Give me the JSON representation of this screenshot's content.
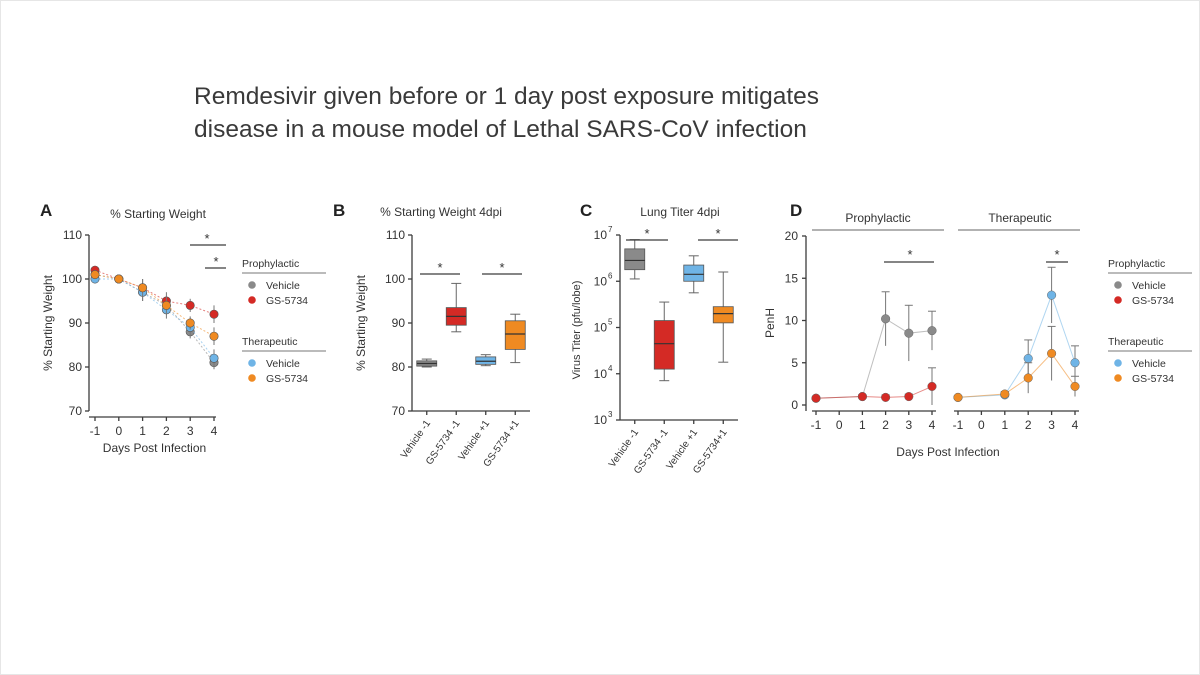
{
  "slide": {
    "title_lines": [
      "Remdesivir given before or 1 day post exposure mitigates",
      "disease in a mouse model of Lethal SARS-CoV infection"
    ]
  },
  "colors": {
    "vehicle_prophylactic": "#8a8a8a",
    "gs5734_prophylactic": "#d42a25",
    "vehicle_therapeutic": "#6fb4e6",
    "gs5734_therapeutic": "#ef8a22"
  },
  "chart_data": [
    {
      "panel": "A",
      "type": "line",
      "title": "% Starting Weight",
      "xlabel": "Days Post Infection",
      "ylabel": "% Starting Weight",
      "x": [
        -1,
        0,
        1,
        2,
        3,
        4
      ],
      "xlim": [
        -1,
        4
      ],
      "ylim": [
        70,
        110
      ],
      "yticks": [
        70,
        80,
        90,
        100,
        110
      ],
      "series": [
        {
          "name": "Vehicle",
          "group": "Prophylactic",
          "values": [
            101,
            100,
            97,
            94,
            88,
            81
          ],
          "err": [
            1,
            0.5,
            2,
            2,
            1.5,
            1.5
          ]
        },
        {
          "name": "GS-5734",
          "group": "Prophylactic",
          "values": [
            102,
            100,
            98,
            95,
            94,
            92
          ],
          "err": [
            1,
            0.5,
            2,
            2,
            1.5,
            2
          ]
        },
        {
          "name": "Vehicle",
          "group": "Therapeutic",
          "values": [
            100,
            100,
            97,
            93,
            89,
            82
          ],
          "err": [
            1,
            0.5,
            2,
            2,
            2,
            2
          ]
        },
        {
          "name": "GS-5734",
          "group": "Therapeutic",
          "values": [
            101,
            100,
            98,
            94,
            90,
            87
          ],
          "err": [
            1,
            0.5,
            2,
            2,
            1.5,
            2
          ]
        }
      ],
      "significance": [
        "*",
        "*"
      ],
      "legend": {
        "groups": [
          {
            "title": "Prophylactic",
            "items": [
              "Vehicle",
              "GS-5734"
            ]
          },
          {
            "title": "Therapeutic",
            "items": [
              "Vehicle",
              "GS-5734"
            ]
          }
        ]
      }
    },
    {
      "panel": "B",
      "type": "box",
      "title": "% Starting Weight 4dpi",
      "ylabel": "% Starting Weight",
      "categories": [
        "Vehicle -1",
        "GS-5734 -1",
        "Vehicle +1",
        "GS-5734 +1"
      ],
      "ylim": [
        70,
        110
      ],
      "yticks": [
        70,
        80,
        90,
        100,
        110
      ],
      "boxes": [
        {
          "min": 80,
          "q1": 80.2,
          "median": 80.8,
          "q3": 81.4,
          "max": 81.8
        },
        {
          "min": 88,
          "q1": 89.5,
          "median": 91.5,
          "q3": 93.5,
          "max": 99
        },
        {
          "min": 80.3,
          "q1": 80.6,
          "median": 81.3,
          "q3": 82.3,
          "max": 82.8
        },
        {
          "min": 81,
          "q1": 84,
          "median": 87.5,
          "q3": 90.5,
          "max": 92
        }
      ],
      "significance": [
        "*",
        "*"
      ]
    },
    {
      "panel": "C",
      "type": "box",
      "title": "Lung Titer 4dpi",
      "ylabel": "Virus Titer (pfu/lobe)",
      "categories": [
        "Vehicle -1",
        "GS-5734 -1",
        "Vehicle +1",
        "GS-5734+1"
      ],
      "scale": "log10",
      "ylim_exp": [
        3,
        7
      ],
      "ytick_exponents": [
        "3",
        "4",
        "5",
        "6",
        "7"
      ],
      "boxes_log10": [
        {
          "min": 6.05,
          "q1": 6.25,
          "median": 6.45,
          "q3": 6.7,
          "max": 6.9
        },
        {
          "min": 3.85,
          "q1": 4.1,
          "median": 4.65,
          "q3": 5.15,
          "max": 5.55
        },
        {
          "min": 5.75,
          "q1": 6.0,
          "median": 6.15,
          "q3": 6.35,
          "max": 6.55
        },
        {
          "min": 4.25,
          "q1": 5.1,
          "median": 5.3,
          "q3": 5.45,
          "max": 6.2
        }
      ],
      "significance": [
        "*",
        "*"
      ]
    },
    {
      "panel": "D",
      "type": "line",
      "ylabel": "PenH",
      "xlabel": "Days Post Infection",
      "ylim": [
        0,
        20
      ],
      "yticks": [
        0,
        5,
        10,
        15,
        20
      ],
      "subpanels": [
        {
          "title": "Prophylactic",
          "x": [
            -1,
            0,
            1,
            2,
            3,
            4
          ],
          "series": [
            {
              "name": "Vehicle",
              "values": [
                0.8,
                null,
                1,
                10.2,
                8.5,
                8.8
              ],
              "err": [
                0.2,
                null,
                0.2,
                3.2,
                3.3,
                2.3
              ]
            },
            {
              "name": "GS-5734",
              "values": [
                0.8,
                null,
                1,
                0.9,
                1.0,
                2.2
              ],
              "err": [
                0.2,
                null,
                0.2,
                0.3,
                0.3,
                2.2
              ]
            }
          ],
          "significance": [
            "*"
          ]
        },
        {
          "title": "Therapeutic",
          "x": [
            -1,
            0,
            1,
            2,
            3,
            4
          ],
          "series": [
            {
              "name": "Vehicle",
              "values": [
                0.9,
                null,
                1.2,
                5.5,
                13,
                5
              ],
              "err": [
                0.2,
                null,
                0.3,
                2.2,
                3.3,
                2
              ]
            },
            {
              "name": "GS-5734",
              "values": [
                0.9,
                null,
                1.3,
                3.2,
                6.1,
                2.2
              ],
              "err": [
                0.2,
                null,
                0.3,
                1.8,
                3.2,
                1.2
              ]
            }
          ],
          "significance": [
            "*"
          ]
        }
      ],
      "legend": {
        "groups": [
          {
            "title": "Prophylactic",
            "items": [
              "Vehicle",
              "GS-5734"
            ]
          },
          {
            "title": "Therapeutic",
            "items": [
              "Vehicle",
              "GS-5734"
            ]
          }
        ]
      }
    }
  ],
  "panel_labels": [
    "A",
    "B",
    "C",
    "D"
  ]
}
